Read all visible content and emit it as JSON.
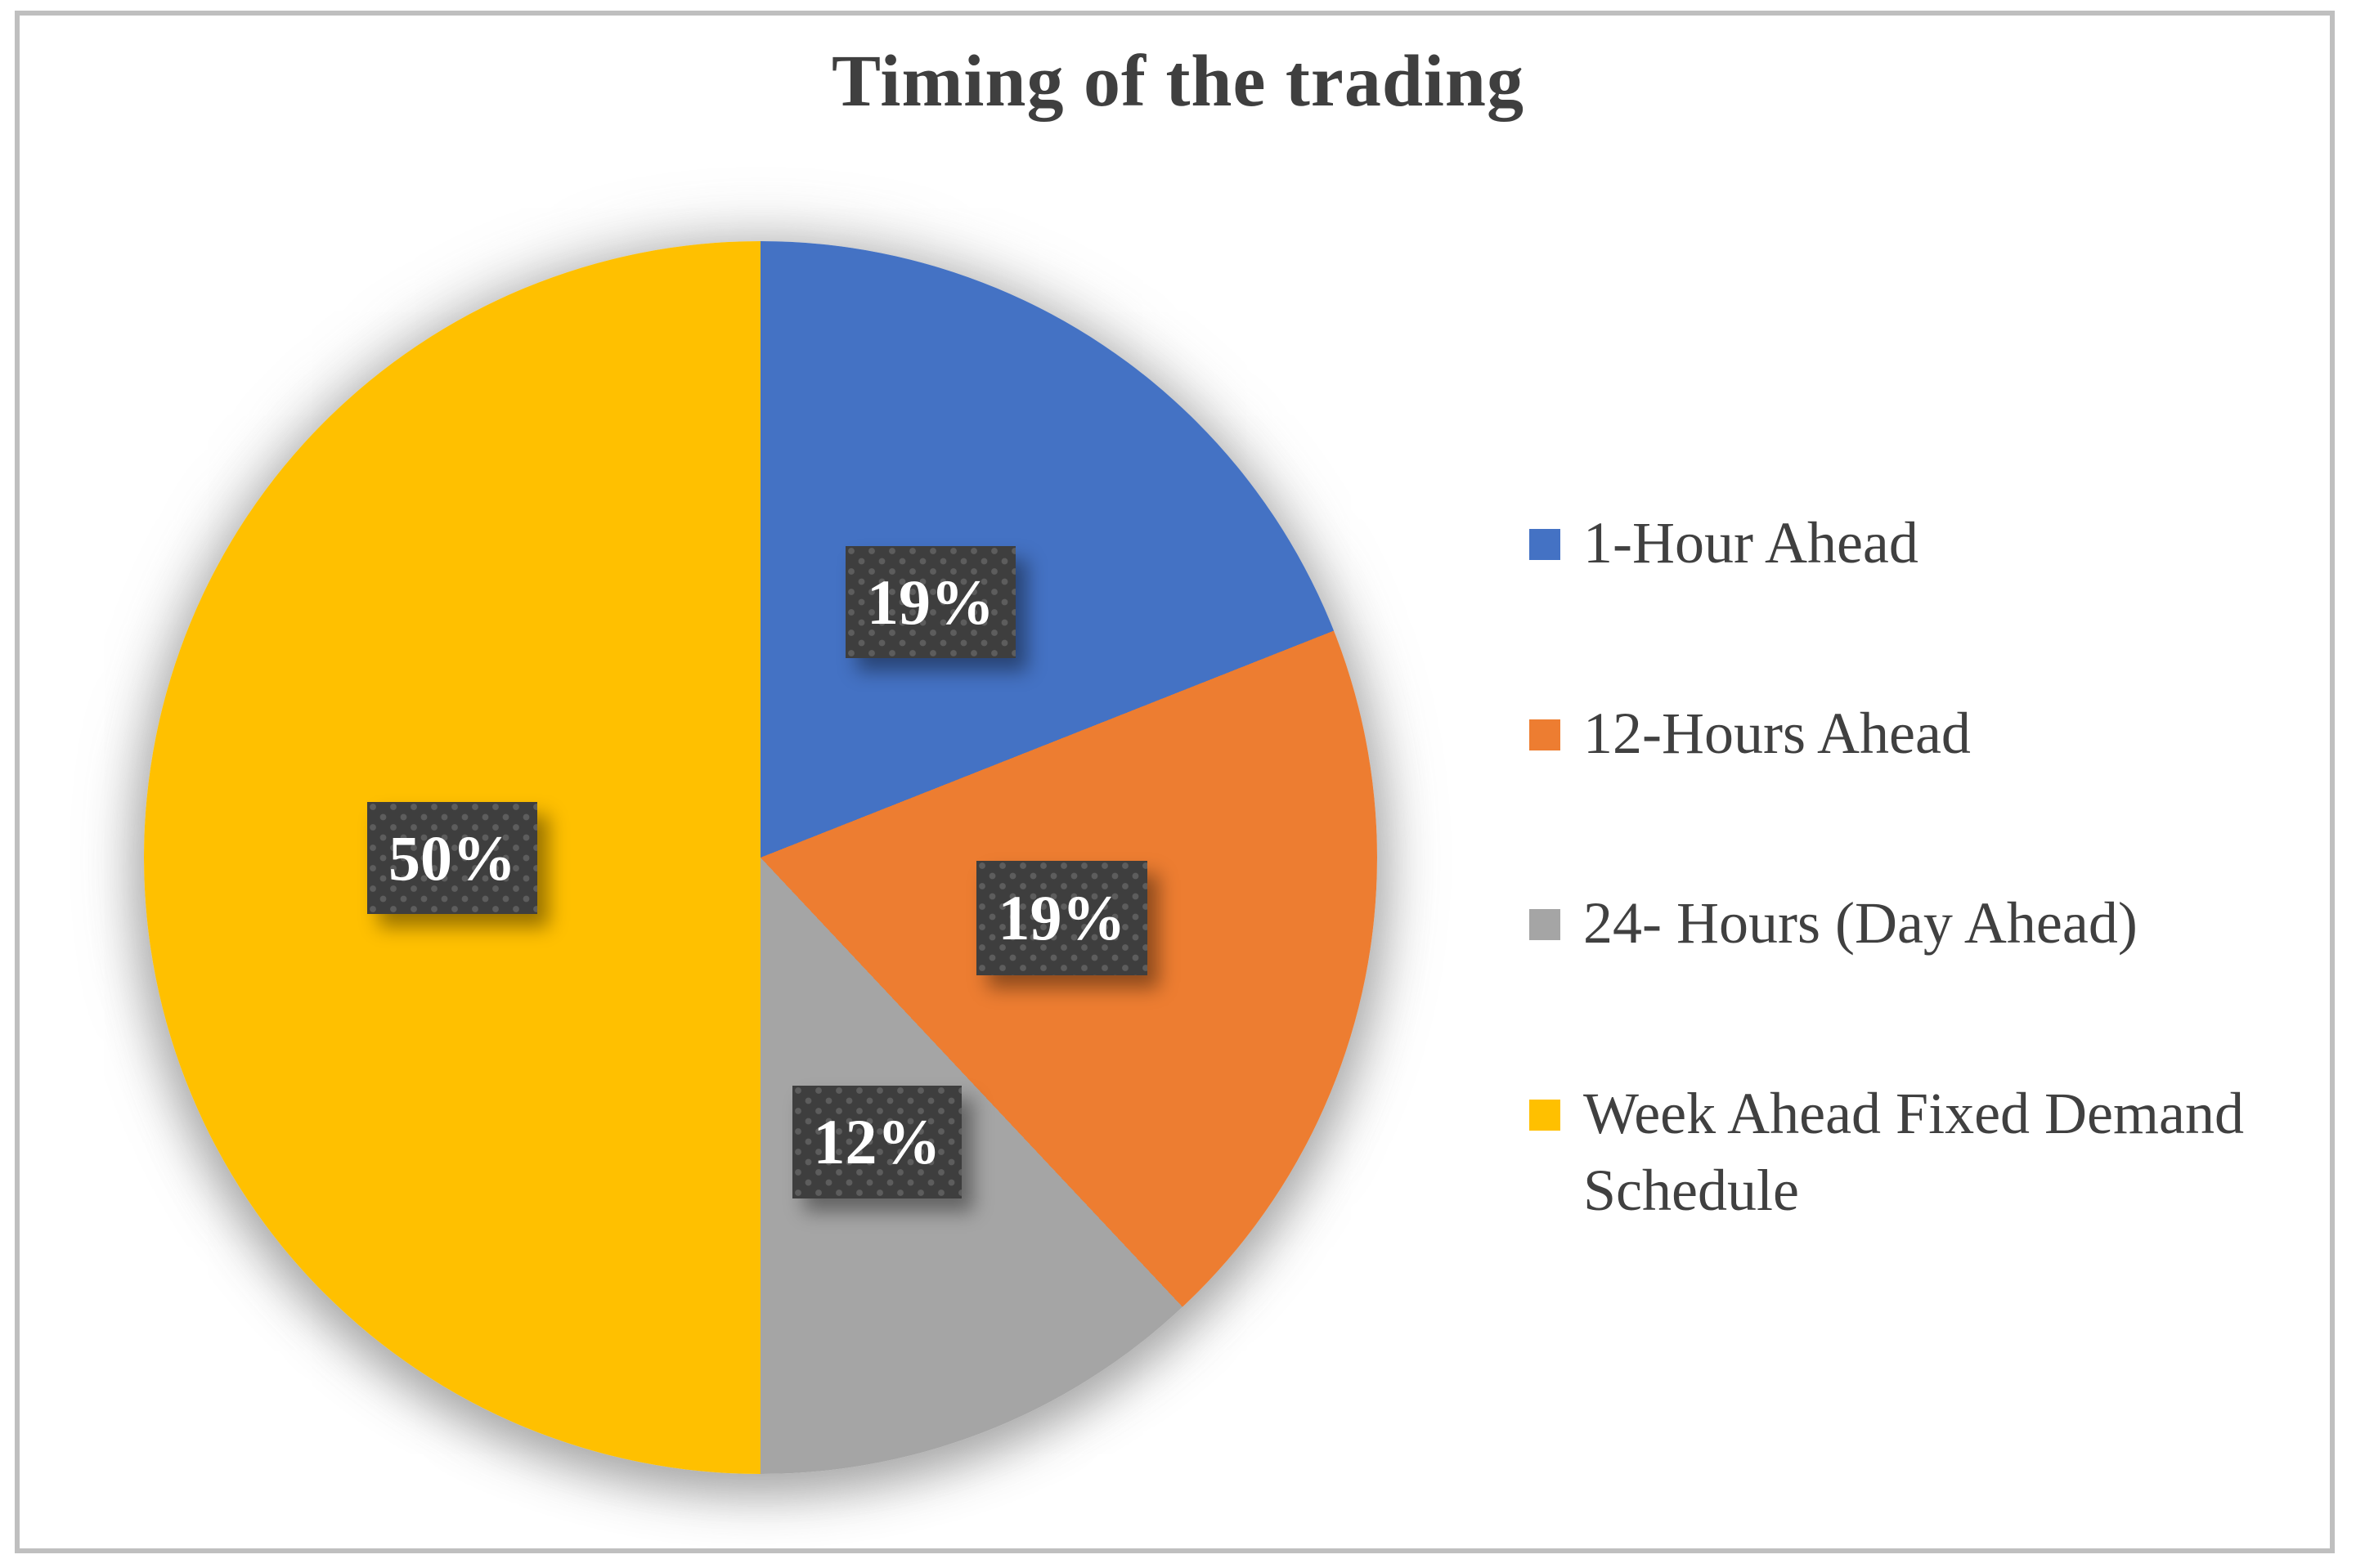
{
  "chart_data": {
    "type": "pie",
    "title": "Timing of the trading",
    "direction": "clockwise",
    "start_angle_deg": 0,
    "legend_position": "right",
    "slices": [
      {
        "label": "1-Hour Ahead",
        "value": 19,
        "percent_label": "19%",
        "color": "#4472C4"
      },
      {
        "label": "12-Hours Ahead",
        "value": 19,
        "percent_label": "19%",
        "color": "#ED7D31"
      },
      {
        "label": "24- Hours (Day Ahead)",
        "value": 12,
        "percent_label": "12%",
        "color": "#A5A5A5"
      },
      {
        "label": "Week Ahead Fixed Demand Schedule",
        "value": 50,
        "percent_label": "50%",
        "color": "#FFC000"
      }
    ],
    "data_label_style": {
      "chip_background": "#3E3E3E",
      "text_color": "#FFFFFF"
    },
    "title_color": "#3F3F3F",
    "legend_text_color": "#404040",
    "frame_border_color": "#BFBFBF"
  }
}
